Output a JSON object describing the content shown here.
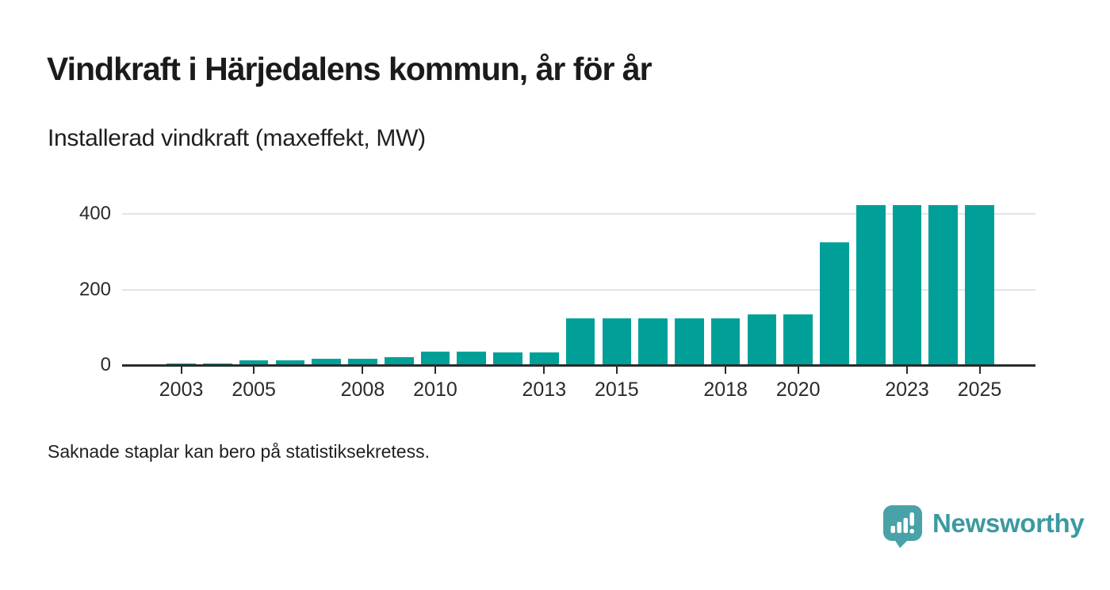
{
  "header": {
    "title": "Vindkraft i Härjedalens kommun, år för år",
    "subtitle": "Installerad vindkraft (maxeffekt, MW)"
  },
  "footnote": {
    "text": "Saknade staplar kan bero på statistiksekretess."
  },
  "logo": {
    "text": "Newsworthy",
    "icon": "newsworthy-speech-bubble-bar-chart-icon",
    "text_color": "#3b99a1",
    "icon_color": "#48a2a7"
  },
  "colors": {
    "bar": "#00a099",
    "axis": "#2b2b2b",
    "gridline": "#e4e4e4",
    "text": "#1b1b1b"
  },
  "chart_data": {
    "type": "bar",
    "title": "Vindkraft i Härjedalens kommun, år för år",
    "subtitle": "Installerad vindkraft (maxeffekt, MW)",
    "unit": "MW",
    "categories": [
      2003,
      2004,
      2005,
      2006,
      2007,
      2008,
      2009,
      2010,
      2011,
      2012,
      2013,
      2014,
      2015,
      2016,
      2017,
      2018,
      2019,
      2020,
      2021,
      2022,
      2023,
      2024,
      2025
    ],
    "values": [
      4,
      4,
      13,
      13,
      17,
      16,
      20,
      35,
      35,
      34,
      34,
      124,
      124,
      124,
      124,
      124,
      134,
      134,
      324,
      422,
      422,
      422,
      422
    ],
    "x_tick_labels": [
      "2003",
      "2005",
      "2008",
      "2010",
      "2013",
      "2015",
      "2018",
      "2020",
      "2023",
      "2025"
    ],
    "y_ticks": [
      0,
      200,
      400
    ],
    "y_tick_labels": [
      "0",
      "200",
      "400"
    ],
    "ylim": [
      0,
      445
    ],
    "grid": "horizontal",
    "legend": "none",
    "bar_color": "#00a099"
  }
}
